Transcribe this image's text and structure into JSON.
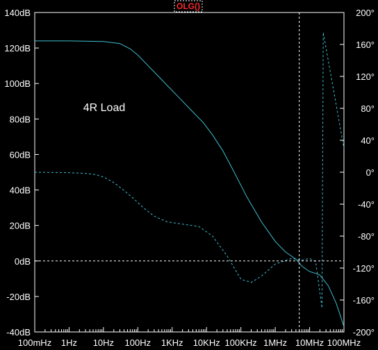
{
  "chart_data": {
    "type": "line",
    "title": "OLG()",
    "annotation": "4R Load",
    "background": "#000000",
    "trace_color": "#3fbfd0",
    "title_color": "#ff2a2a",
    "grid": false,
    "x_scale": "log",
    "x_ticks": [
      {
        "value": 0.1,
        "label": "100mHz"
      },
      {
        "value": 1,
        "label": "1Hz"
      },
      {
        "value": 10,
        "label": "10Hz"
      },
      {
        "value": 100,
        "label": "100Hz"
      },
      {
        "value": 1000,
        "label": "1KHz"
      },
      {
        "value": 10000,
        "label": "10KHz"
      },
      {
        "value": 100000,
        "label": "100KHz"
      },
      {
        "value": 1000000,
        "label": "1MHz"
      },
      {
        "value": 10000000,
        "label": "10MHz"
      },
      {
        "value": 100000000,
        "label": "100MHz"
      }
    ],
    "xlim": [
      0.1,
      100000000
    ],
    "y_left": {
      "lim": [
        -40,
        140
      ],
      "ticks": [
        {
          "value": 140,
          "label": "140dB"
        },
        {
          "value": 120,
          "label": "120dB"
        },
        {
          "value": 100,
          "label": "100dB"
        },
        {
          "value": 80,
          "label": "80dB"
        },
        {
          "value": 60,
          "label": "60dB"
        },
        {
          "value": 40,
          "label": "40dB"
        },
        {
          "value": 20,
          "label": "20dB"
        },
        {
          "value": 0,
          "label": "0dB"
        },
        {
          "value": -20,
          "label": "-20dB"
        },
        {
          "value": -40,
          "label": "-40dB"
        }
      ]
    },
    "y_right": {
      "lim": [
        -200,
        200
      ],
      "ticks": [
        {
          "value": 200,
          "label": "200°"
        },
        {
          "value": 160,
          "label": "160°"
        },
        {
          "value": 120,
          "label": "120°"
        },
        {
          "value": 80,
          "label": "80°"
        },
        {
          "value": 40,
          "label": "40°"
        },
        {
          "value": 0,
          "label": "0°"
        },
        {
          "value": -40,
          "label": "-40°"
        },
        {
          "value": -80,
          "label": "-80°"
        },
        {
          "value": -120,
          "label": "-120°"
        },
        {
          "value": -160,
          "label": "-160°"
        },
        {
          "value": -200,
          "label": "-200°"
        }
      ]
    },
    "crosshair": {
      "x": 5000000,
      "y_db": 0
    },
    "series": [
      {
        "style": "solid",
        "axis": "left",
        "points": [
          [
            0.1,
            124
          ],
          [
            1,
            124
          ],
          [
            10,
            123.7
          ],
          [
            30,
            122.5
          ],
          [
            60,
            119.5
          ],
          [
            100,
            116
          ],
          [
            200,
            110
          ],
          [
            400,
            104
          ],
          [
            1000,
            96
          ],
          [
            2000,
            90
          ],
          [
            4000,
            84
          ],
          [
            8000,
            78
          ],
          [
            15000,
            71
          ],
          [
            30000,
            62
          ],
          [
            60000,
            51
          ],
          [
            150000,
            36
          ],
          [
            400000,
            22
          ],
          [
            1000000,
            11
          ],
          [
            2000000,
            5
          ],
          [
            4000000,
            1
          ],
          [
            6000000,
            -3
          ],
          [
            10000000,
            -6
          ],
          [
            15000000,
            -7
          ],
          [
            20000000,
            -8
          ],
          [
            35000000,
            -14
          ],
          [
            60000000,
            -24
          ],
          [
            100000000,
            -37
          ]
        ]
      },
      {
        "style": "dashed",
        "axis": "right",
        "points": [
          [
            0.1,
            0
          ],
          [
            1,
            -0.5
          ],
          [
            3,
            -1.5
          ],
          [
            6,
            -3
          ],
          [
            10,
            -6
          ],
          [
            20,
            -13
          ],
          [
            40,
            -23
          ],
          [
            80,
            -34
          ],
          [
            150,
            -45
          ],
          [
            300,
            -55
          ],
          [
            700,
            -62
          ],
          [
            2000,
            -65
          ],
          [
            6000,
            -68
          ],
          [
            15000,
            -80
          ],
          [
            40000,
            -105
          ],
          [
            100000,
            -134
          ],
          [
            200000,
            -138
          ],
          [
            400000,
            -130
          ],
          [
            1000000,
            -115
          ],
          [
            3000000,
            -108
          ],
          [
            6000000,
            -110
          ],
          [
            10000000,
            -108
          ],
          [
            15000000,
            -112
          ],
          [
            23000000,
            -170
          ],
          [
            25000000,
            175
          ],
          [
            100000000,
            30
          ]
        ]
      }
    ]
  }
}
